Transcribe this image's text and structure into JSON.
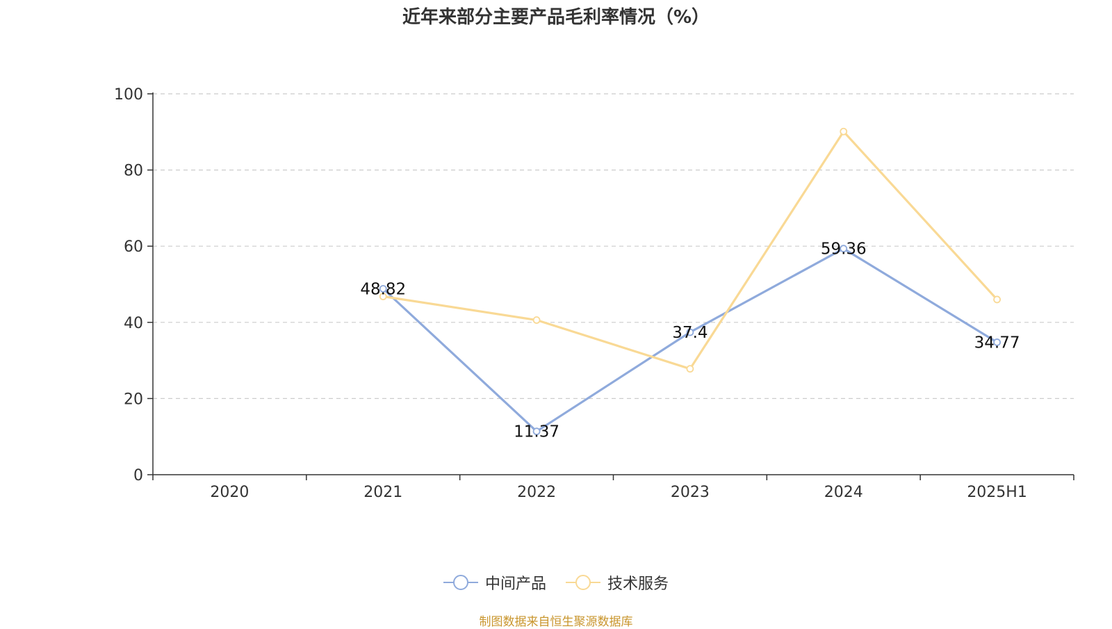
{
  "chart_data": {
    "type": "line",
    "title": "近年来部分主要产品毛利率情况（%）",
    "categories": [
      "2020",
      "2021",
      "2022",
      "2023",
      "2024",
      "2025H1"
    ],
    "ylim": [
      0,
      100
    ],
    "yticks": [
      0,
      20,
      40,
      60,
      80,
      100
    ],
    "grid": true,
    "legend_position": "bottom",
    "series": [
      {
        "name": "中间产品",
        "color": "#8faadc",
        "values": [
          null,
          48.82,
          11.37,
          37.4,
          59.36,
          34.77
        ],
        "labels": [
          null,
          "48.82",
          "11.37",
          "37.4",
          "59.36",
          "34.77"
        ]
      },
      {
        "name": "技术服务",
        "color": "#f9d995",
        "values": [
          null,
          46.8,
          40.6,
          27.8,
          90.1,
          46.0
        ]
      }
    ]
  },
  "source": "制图数据来自恒生聚源数据库"
}
